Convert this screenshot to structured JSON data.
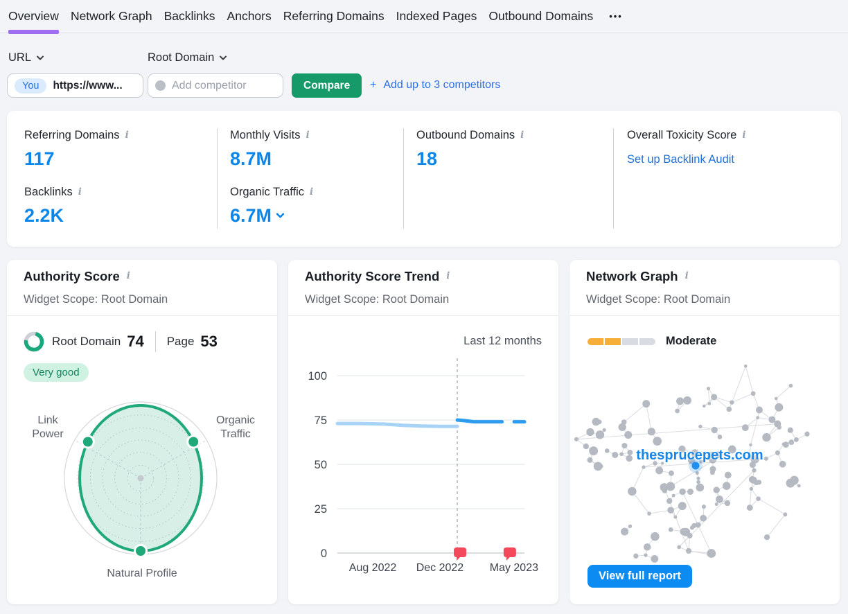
{
  "icons": {
    "info": "i",
    "more": "•••",
    "plus": "+"
  },
  "nav": {
    "tabs": [
      {
        "label": "Overview",
        "active": true
      },
      {
        "label": "Network Graph",
        "active": false
      },
      {
        "label": "Backlinks",
        "active": false
      },
      {
        "label": "Anchors",
        "active": false
      },
      {
        "label": "Referring Domains",
        "active": false
      },
      {
        "label": "Indexed Pages",
        "active": false
      },
      {
        "label": "Outbound Domains",
        "active": false
      }
    ]
  },
  "filters": {
    "url_label": "URL",
    "scope_label": "Root Domain",
    "you_badge": "You",
    "target_value": "https://www...",
    "competitor_placeholder": "Add competitor",
    "compare_label": "Compare",
    "add_competitors_label": "Add up to 3 competitors"
  },
  "stats": {
    "col1": {
      "top_label": "Referring Domains",
      "top_value": "117",
      "bottom_label": "Backlinks",
      "bottom_value": "2.2K"
    },
    "col2": {
      "top_label": "Monthly Visits",
      "top_value": "8.7M",
      "bottom_label": "Organic Traffic",
      "bottom_value": "6.7M"
    },
    "col3": {
      "label": "Outbound Domains",
      "value": "18"
    },
    "col4": {
      "label": "Overall Toxicity Score",
      "link_label": "Set up Backlink Audit"
    }
  },
  "widgets": {
    "authority_score": {
      "title": "Authority Score",
      "scope": "Widget Scope: Root Domain",
      "root_domain_label": "Root Domain",
      "root_domain_value": "74",
      "page_label": "Page",
      "page_value": "53",
      "rating": "Very good"
    },
    "trend": {
      "title": "Authority Score Trend",
      "scope": "Widget Scope: Root Domain",
      "range_label": "Last 12 months"
    },
    "network": {
      "title": "Network Graph",
      "scope": "Widget Scope: Root Domain",
      "rating": "Moderate",
      "domain": "thesprucepets.com",
      "button_label": "View full report"
    }
  },
  "chart_data": [
    {
      "type": "radar",
      "title": "Authority Score",
      "axes": [
        "Link Power",
        "Organic Traffic",
        "Natural Profile"
      ],
      "axis_angles_deg": [
        -150,
        -30,
        90
      ],
      "values": [
        84,
        84,
        95
      ],
      "max": 100,
      "stroke_color": "#1fa878",
      "fill_color": "rgba(31,168,120,0.18)",
      "grid_color": "#c8ccd3",
      "outer_ring_color": "#d4d7dd"
    },
    {
      "type": "line",
      "title": "Authority Score Trend",
      "range_label": "Last 12 months",
      "ylim": [
        0,
        100
      ],
      "yticks": [
        100,
        75,
        50,
        25,
        0
      ],
      "xticks": [
        {
          "pos": 0.189,
          "label": "Aug 2022"
        },
        {
          "pos": 0.548,
          "label": "Dec 2022"
        },
        {
          "pos": 0.944,
          "label": "May 2023"
        }
      ],
      "divider_pos": 0.641,
      "series": [
        {
          "name": "authority-score-previous",
          "color": "#a7d4f6",
          "width": 5,
          "points": [
            [
              0,
              73
            ],
            [
              0.12,
              73
            ],
            [
              0.25,
              72.7
            ],
            [
              0.35,
              72
            ],
            [
              0.45,
              71.6
            ],
            [
              0.55,
              71.4
            ],
            [
              0.641,
              71.4
            ]
          ]
        },
        {
          "name": "authority-score-current",
          "color": "#2d9bef",
          "width": 5,
          "points": [
            [
              0.641,
              75
            ],
            [
              0.68,
              74.6
            ],
            [
              0.73,
              74
            ],
            [
              0.88,
              74
            ]
          ]
        },
        {
          "name": "authority-score-latest",
          "color": "#2d9bef",
          "width": 5,
          "points": [
            [
              0.945,
              74
            ],
            [
              1,
              74
            ]
          ]
        }
      ],
      "markers": [
        {
          "pos": 0.641,
          "value": 0,
          "shape": "flag",
          "color": "#f4485c"
        },
        {
          "pos": 0.907,
          "value": 0,
          "shape": "flag",
          "color": "#f4485c"
        }
      ],
      "grid_color": "#e4e6ea",
      "zero_line_color": "#c3c7ce",
      "divider_color": "#a4a9b2",
      "tick_text_color": "#3d434c"
    },
    {
      "type": "network",
      "label": "thesprucepets.com",
      "rating": "Moderate",
      "meter": {
        "segments": 4,
        "filled": 2,
        "filled_color": "#f6ae39",
        "empty_color": "#d8dbe2"
      },
      "node_count": 135,
      "node_color": "#b5b9c2",
      "edge_color": "#d9dbe0",
      "highlight_color": "#1e8ef0"
    }
  ]
}
